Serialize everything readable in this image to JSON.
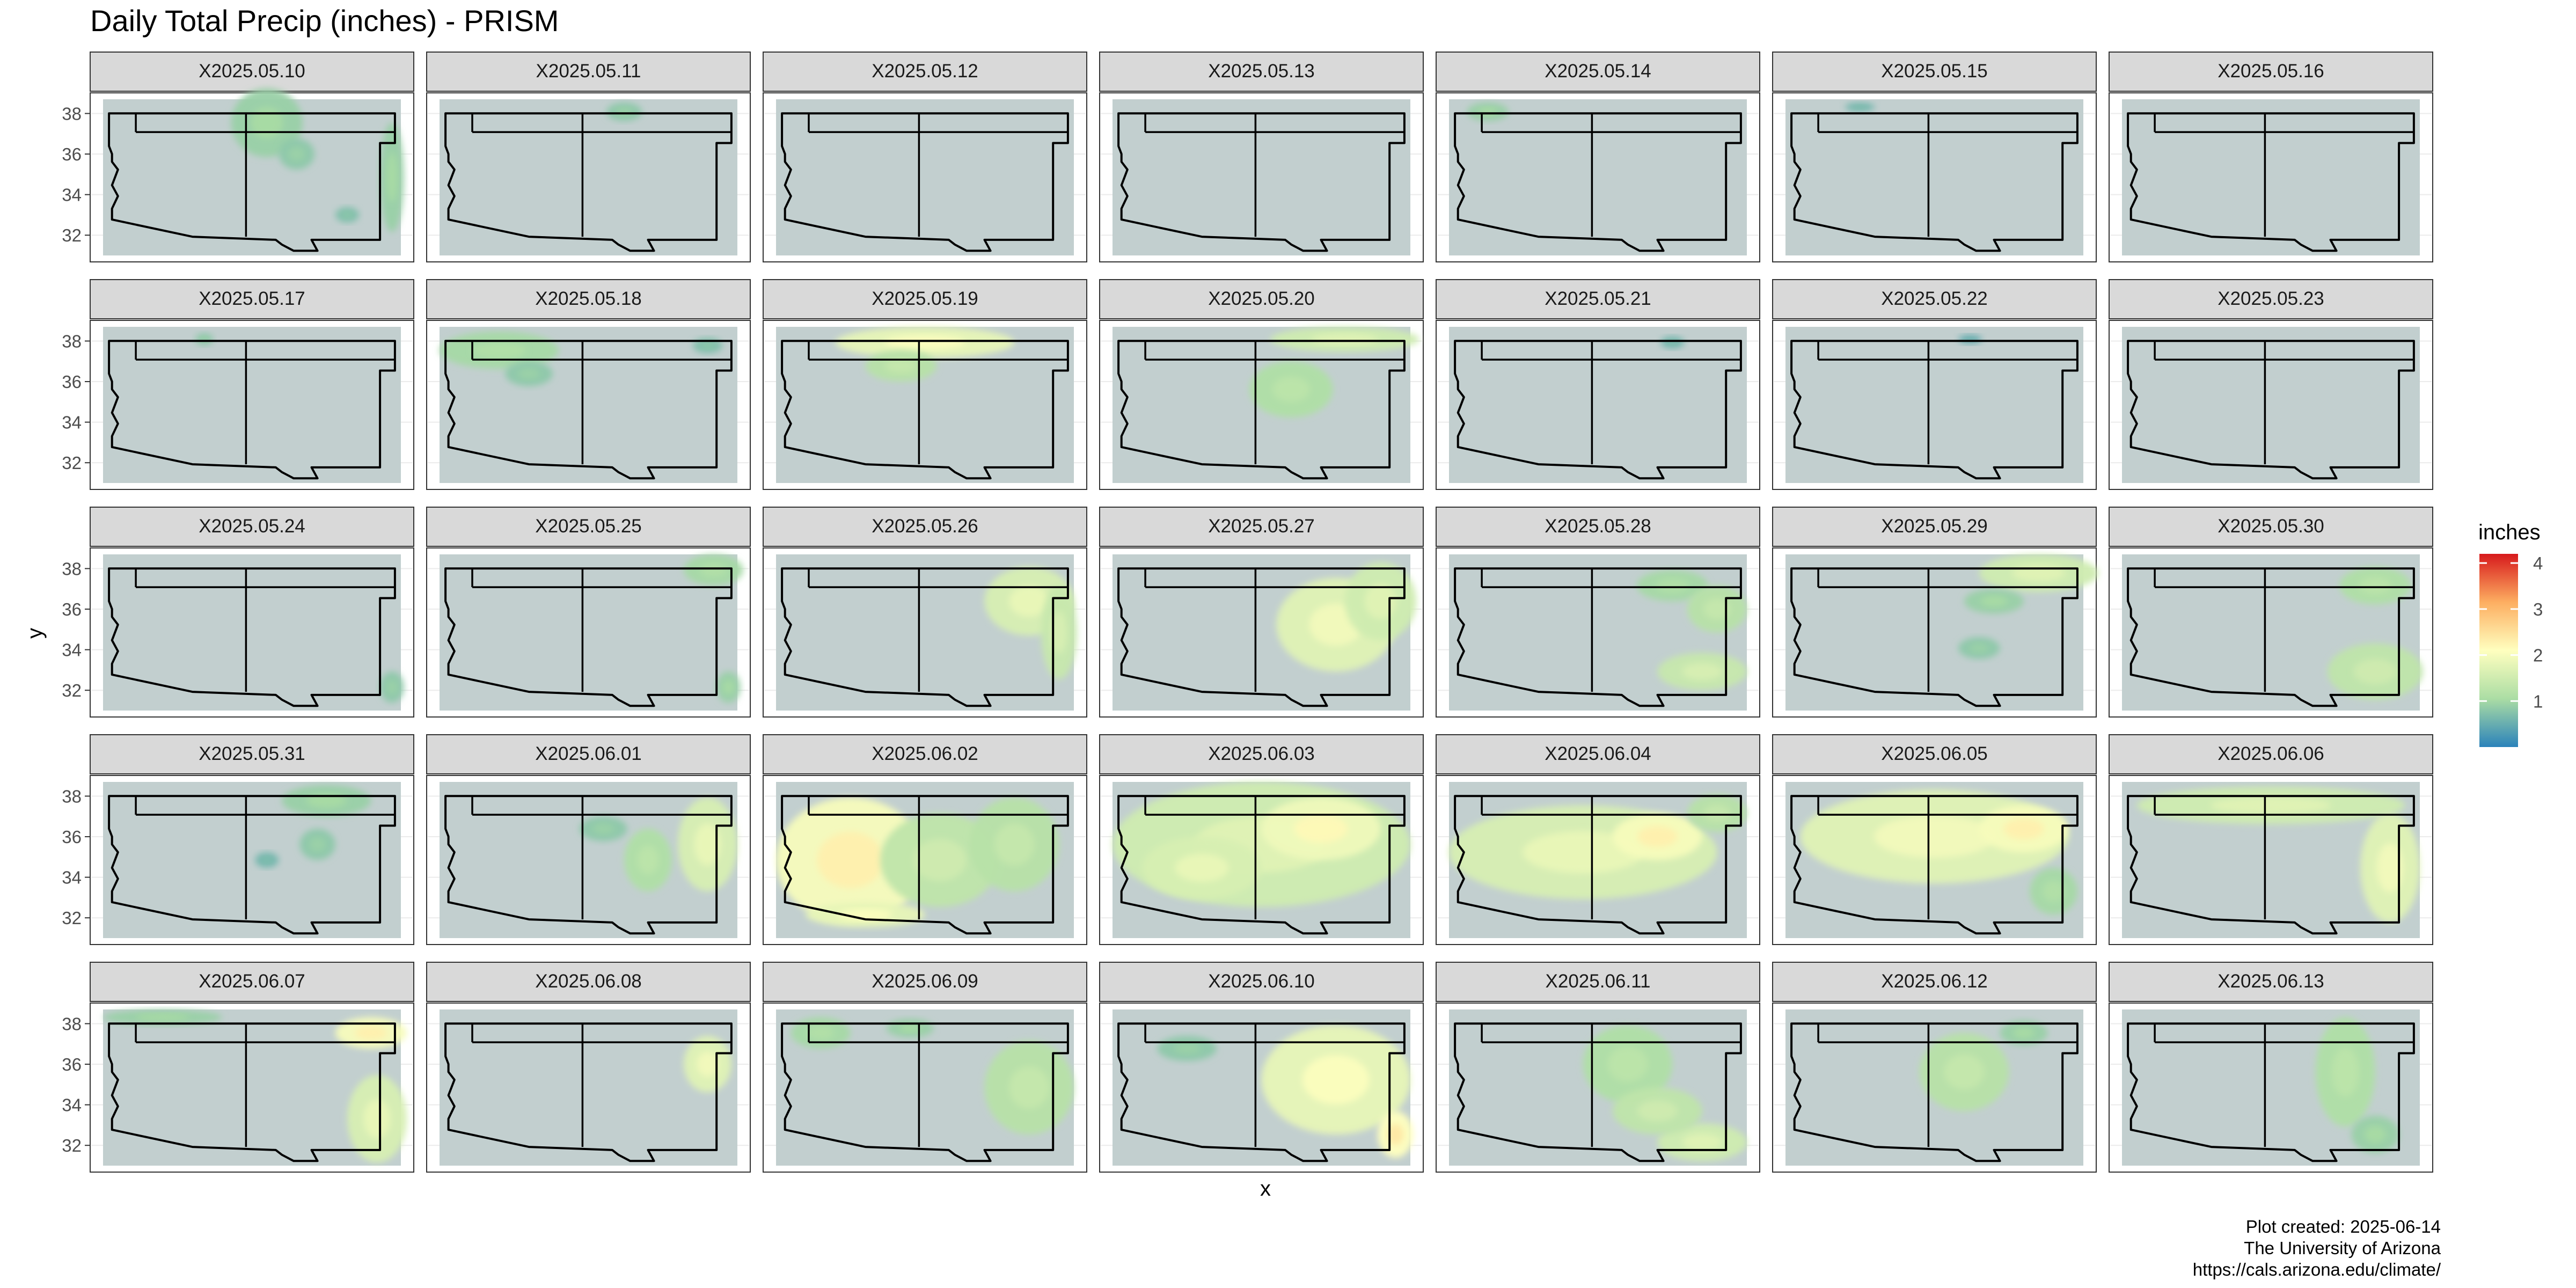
{
  "chart_data": {
    "type": "heatmap",
    "title": "Daily Total Precip (inches) - PRISM",
    "xlabel": "x",
    "ylabel": "y",
    "y_ticks": [
      "32",
      "34",
      "36",
      "38"
    ],
    "legend": {
      "title": "inches",
      "ticks": [
        "1",
        "2",
        "3",
        "4"
      ],
      "range": [
        0,
        4.2
      ],
      "colors": [
        "#2b83ba",
        "#abdda4",
        "#ffffbf",
        "#fdae61",
        "#d7191c"
      ],
      "placement": "right"
    },
    "facet_layout": {
      "ncol": 7,
      "nrow": 5
    },
    "facets": [
      {
        "label": "X2025.05.10",
        "blobs": [
          [
            0.55,
            0.15,
            0.12,
            0.22,
            0.9
          ],
          [
            0.65,
            0.35,
            0.06,
            0.1,
            0.8
          ],
          [
            0.97,
            0.5,
            0.04,
            0.35,
            0.9
          ],
          [
            0.82,
            0.74,
            0.04,
            0.05,
            0.7
          ]
        ]
      },
      {
        "label": "X2025.05.11",
        "blobs": [
          [
            0.62,
            0.08,
            0.06,
            0.06,
            0.8
          ]
        ]
      },
      {
        "label": "X2025.05.12",
        "blobs": []
      },
      {
        "label": "X2025.05.13",
        "blobs": []
      },
      {
        "label": "X2025.05.14",
        "blobs": [
          [
            0.13,
            0.08,
            0.07,
            0.06,
            0.9
          ]
        ]
      },
      {
        "label": "X2025.05.15",
        "blobs": [
          [
            0.25,
            0.05,
            0.05,
            0.03,
            0.6
          ]
        ]
      },
      {
        "label": "X2025.05.16",
        "blobs": []
      },
      {
        "label": "X2025.05.17",
        "blobs": [
          [
            0.34,
            0.08,
            0.03,
            0.04,
            0.8
          ]
        ]
      },
      {
        "label": "X2025.05.18",
        "blobs": [
          [
            0.2,
            0.15,
            0.2,
            0.12,
            1.0
          ],
          [
            0.3,
            0.3,
            0.08,
            0.08,
            0.8
          ],
          [
            0.9,
            0.12,
            0.05,
            0.05,
            0.7
          ]
        ]
      },
      {
        "label": "X2025.05.19",
        "blobs": [
          [
            0.5,
            0.1,
            0.3,
            0.1,
            1.8
          ],
          [
            0.42,
            0.25,
            0.12,
            0.1,
            1.2
          ]
        ]
      },
      {
        "label": "X2025.05.20",
        "blobs": [
          [
            0.78,
            0.08,
            0.25,
            0.08,
            1.5
          ],
          [
            0.6,
            0.4,
            0.14,
            0.18,
            1.1
          ]
        ]
      },
      {
        "label": "X2025.05.21",
        "blobs": [
          [
            0.75,
            0.1,
            0.04,
            0.04,
            0.6
          ]
        ]
      },
      {
        "label": "X2025.05.22",
        "blobs": [
          [
            0.62,
            0.08,
            0.04,
            0.03,
            0.5
          ]
        ]
      },
      {
        "label": "X2025.05.23",
        "blobs": []
      },
      {
        "label": "X2025.05.24",
        "blobs": [
          [
            0.97,
            0.85,
            0.04,
            0.1,
            0.8
          ]
        ]
      },
      {
        "label": "X2025.05.25",
        "blobs": [
          [
            0.92,
            0.1,
            0.1,
            0.1,
            1.0
          ],
          [
            0.97,
            0.85,
            0.04,
            0.1,
            0.9
          ]
        ]
      },
      {
        "label": "X2025.05.26",
        "blobs": [
          [
            0.85,
            0.3,
            0.15,
            0.22,
            1.6
          ],
          [
            0.95,
            0.5,
            0.06,
            0.3,
            1.4
          ]
        ]
      },
      {
        "label": "X2025.05.27",
        "blobs": [
          [
            0.75,
            0.45,
            0.2,
            0.3,
            1.7
          ],
          [
            0.9,
            0.3,
            0.12,
            0.25,
            1.5
          ]
        ]
      },
      {
        "label": "X2025.05.28",
        "blobs": [
          [
            0.85,
            0.75,
            0.15,
            0.12,
            1.4
          ],
          [
            0.75,
            0.2,
            0.12,
            0.1,
            1.0
          ],
          [
            0.9,
            0.35,
            0.1,
            0.15,
            1.2
          ]
        ]
      },
      {
        "label": "X2025.05.29",
        "blobs": [
          [
            0.85,
            0.12,
            0.2,
            0.12,
            1.5
          ],
          [
            0.7,
            0.3,
            0.1,
            0.08,
            0.9
          ],
          [
            0.65,
            0.6,
            0.07,
            0.07,
            0.8
          ]
        ]
      },
      {
        "label": "X2025.05.30",
        "blobs": [
          [
            0.85,
            0.2,
            0.12,
            0.12,
            1.1
          ],
          [
            0.85,
            0.75,
            0.16,
            0.18,
            1.3
          ]
        ]
      },
      {
        "label": "X2025.05.31",
        "blobs": [
          [
            0.75,
            0.12,
            0.15,
            0.1,
            0.9
          ],
          [
            0.72,
            0.4,
            0.06,
            0.1,
            0.8
          ],
          [
            0.55,
            0.5,
            0.04,
            0.05,
            0.6
          ]
        ]
      },
      {
        "label": "X2025.06.01",
        "blobs": [
          [
            0.9,
            0.4,
            0.1,
            0.3,
            1.6
          ],
          [
            0.7,
            0.5,
            0.08,
            0.2,
            1.1
          ],
          [
            0.55,
            0.3,
            0.08,
            0.08,
            0.8
          ]
        ]
      },
      {
        "label": "X2025.06.02",
        "blobs": [
          [
            0.25,
            0.5,
            0.25,
            0.4,
            2.0
          ],
          [
            0.55,
            0.5,
            0.2,
            0.3,
            1.3
          ],
          [
            0.8,
            0.4,
            0.15,
            0.3,
            1.2
          ],
          [
            0.3,
            0.85,
            0.2,
            0.08,
            1.8
          ]
        ]
      },
      {
        "label": "X2025.06.03",
        "blobs": [
          [
            0.5,
            0.4,
            0.5,
            0.4,
            1.5
          ],
          [
            0.7,
            0.3,
            0.2,
            0.2,
            1.9
          ],
          [
            0.3,
            0.55,
            0.2,
            0.2,
            1.6
          ]
        ]
      },
      {
        "label": "X2025.06.04",
        "blobs": [
          [
            0.45,
            0.45,
            0.45,
            0.3,
            1.6
          ],
          [
            0.7,
            0.35,
            0.15,
            0.15,
            2.0
          ],
          [
            0.9,
            0.2,
            0.1,
            0.12,
            1.2
          ]
        ]
      },
      {
        "label": "X2025.06.05",
        "blobs": [
          [
            0.5,
            0.35,
            0.45,
            0.3,
            1.7
          ],
          [
            0.8,
            0.3,
            0.15,
            0.15,
            2.0
          ],
          [
            0.9,
            0.7,
            0.08,
            0.15,
            1.0
          ]
        ]
      },
      {
        "label": "X2025.06.06",
        "blobs": [
          [
            0.5,
            0.15,
            0.45,
            0.12,
            1.5
          ],
          [
            0.9,
            0.55,
            0.1,
            0.35,
            1.7
          ]
        ]
      },
      {
        "label": "X2025.06.07",
        "blobs": [
          [
            0.9,
            0.15,
            0.12,
            0.1,
            2.0
          ],
          [
            0.92,
            0.7,
            0.1,
            0.28,
            1.6
          ],
          [
            0.2,
            0.05,
            0.2,
            0.05,
            0.9
          ]
        ]
      },
      {
        "label": "X2025.06.08",
        "blobs": [
          [
            0.9,
            0.35,
            0.08,
            0.18,
            1.7
          ]
        ]
      },
      {
        "label": "X2025.06.09",
        "blobs": [
          [
            0.85,
            0.5,
            0.15,
            0.3,
            1.2
          ],
          [
            0.15,
            0.15,
            0.1,
            0.1,
            1.0
          ],
          [
            0.45,
            0.12,
            0.08,
            0.06,
            0.9
          ]
        ]
      },
      {
        "label": "X2025.06.10",
        "blobs": [
          [
            0.75,
            0.45,
            0.25,
            0.35,
            1.8
          ],
          [
            0.95,
            0.8,
            0.06,
            0.15,
            2.1
          ],
          [
            0.25,
            0.25,
            0.1,
            0.08,
            0.8
          ]
        ]
      },
      {
        "label": "X2025.06.11",
        "blobs": [
          [
            0.6,
            0.35,
            0.15,
            0.25,
            1.1
          ],
          [
            0.85,
            0.85,
            0.15,
            0.12,
            1.5
          ],
          [
            0.7,
            0.65,
            0.15,
            0.15,
            1.3
          ]
        ]
      },
      {
        "label": "X2025.06.12",
        "blobs": [
          [
            0.6,
            0.4,
            0.15,
            0.25,
            1.2
          ],
          [
            0.8,
            0.15,
            0.08,
            0.08,
            0.9
          ]
        ]
      },
      {
        "label": "X2025.06.13",
        "blobs": [
          [
            0.75,
            0.4,
            0.1,
            0.35,
            1.1
          ],
          [
            0.85,
            0.8,
            0.08,
            0.12,
            0.9
          ]
        ]
      }
    ]
  },
  "caption": {
    "line1": "Plot created: 2025-06-14",
    "line2": "The University of Arizona",
    "line3": "https://cals.arizona.edu/climate/"
  }
}
